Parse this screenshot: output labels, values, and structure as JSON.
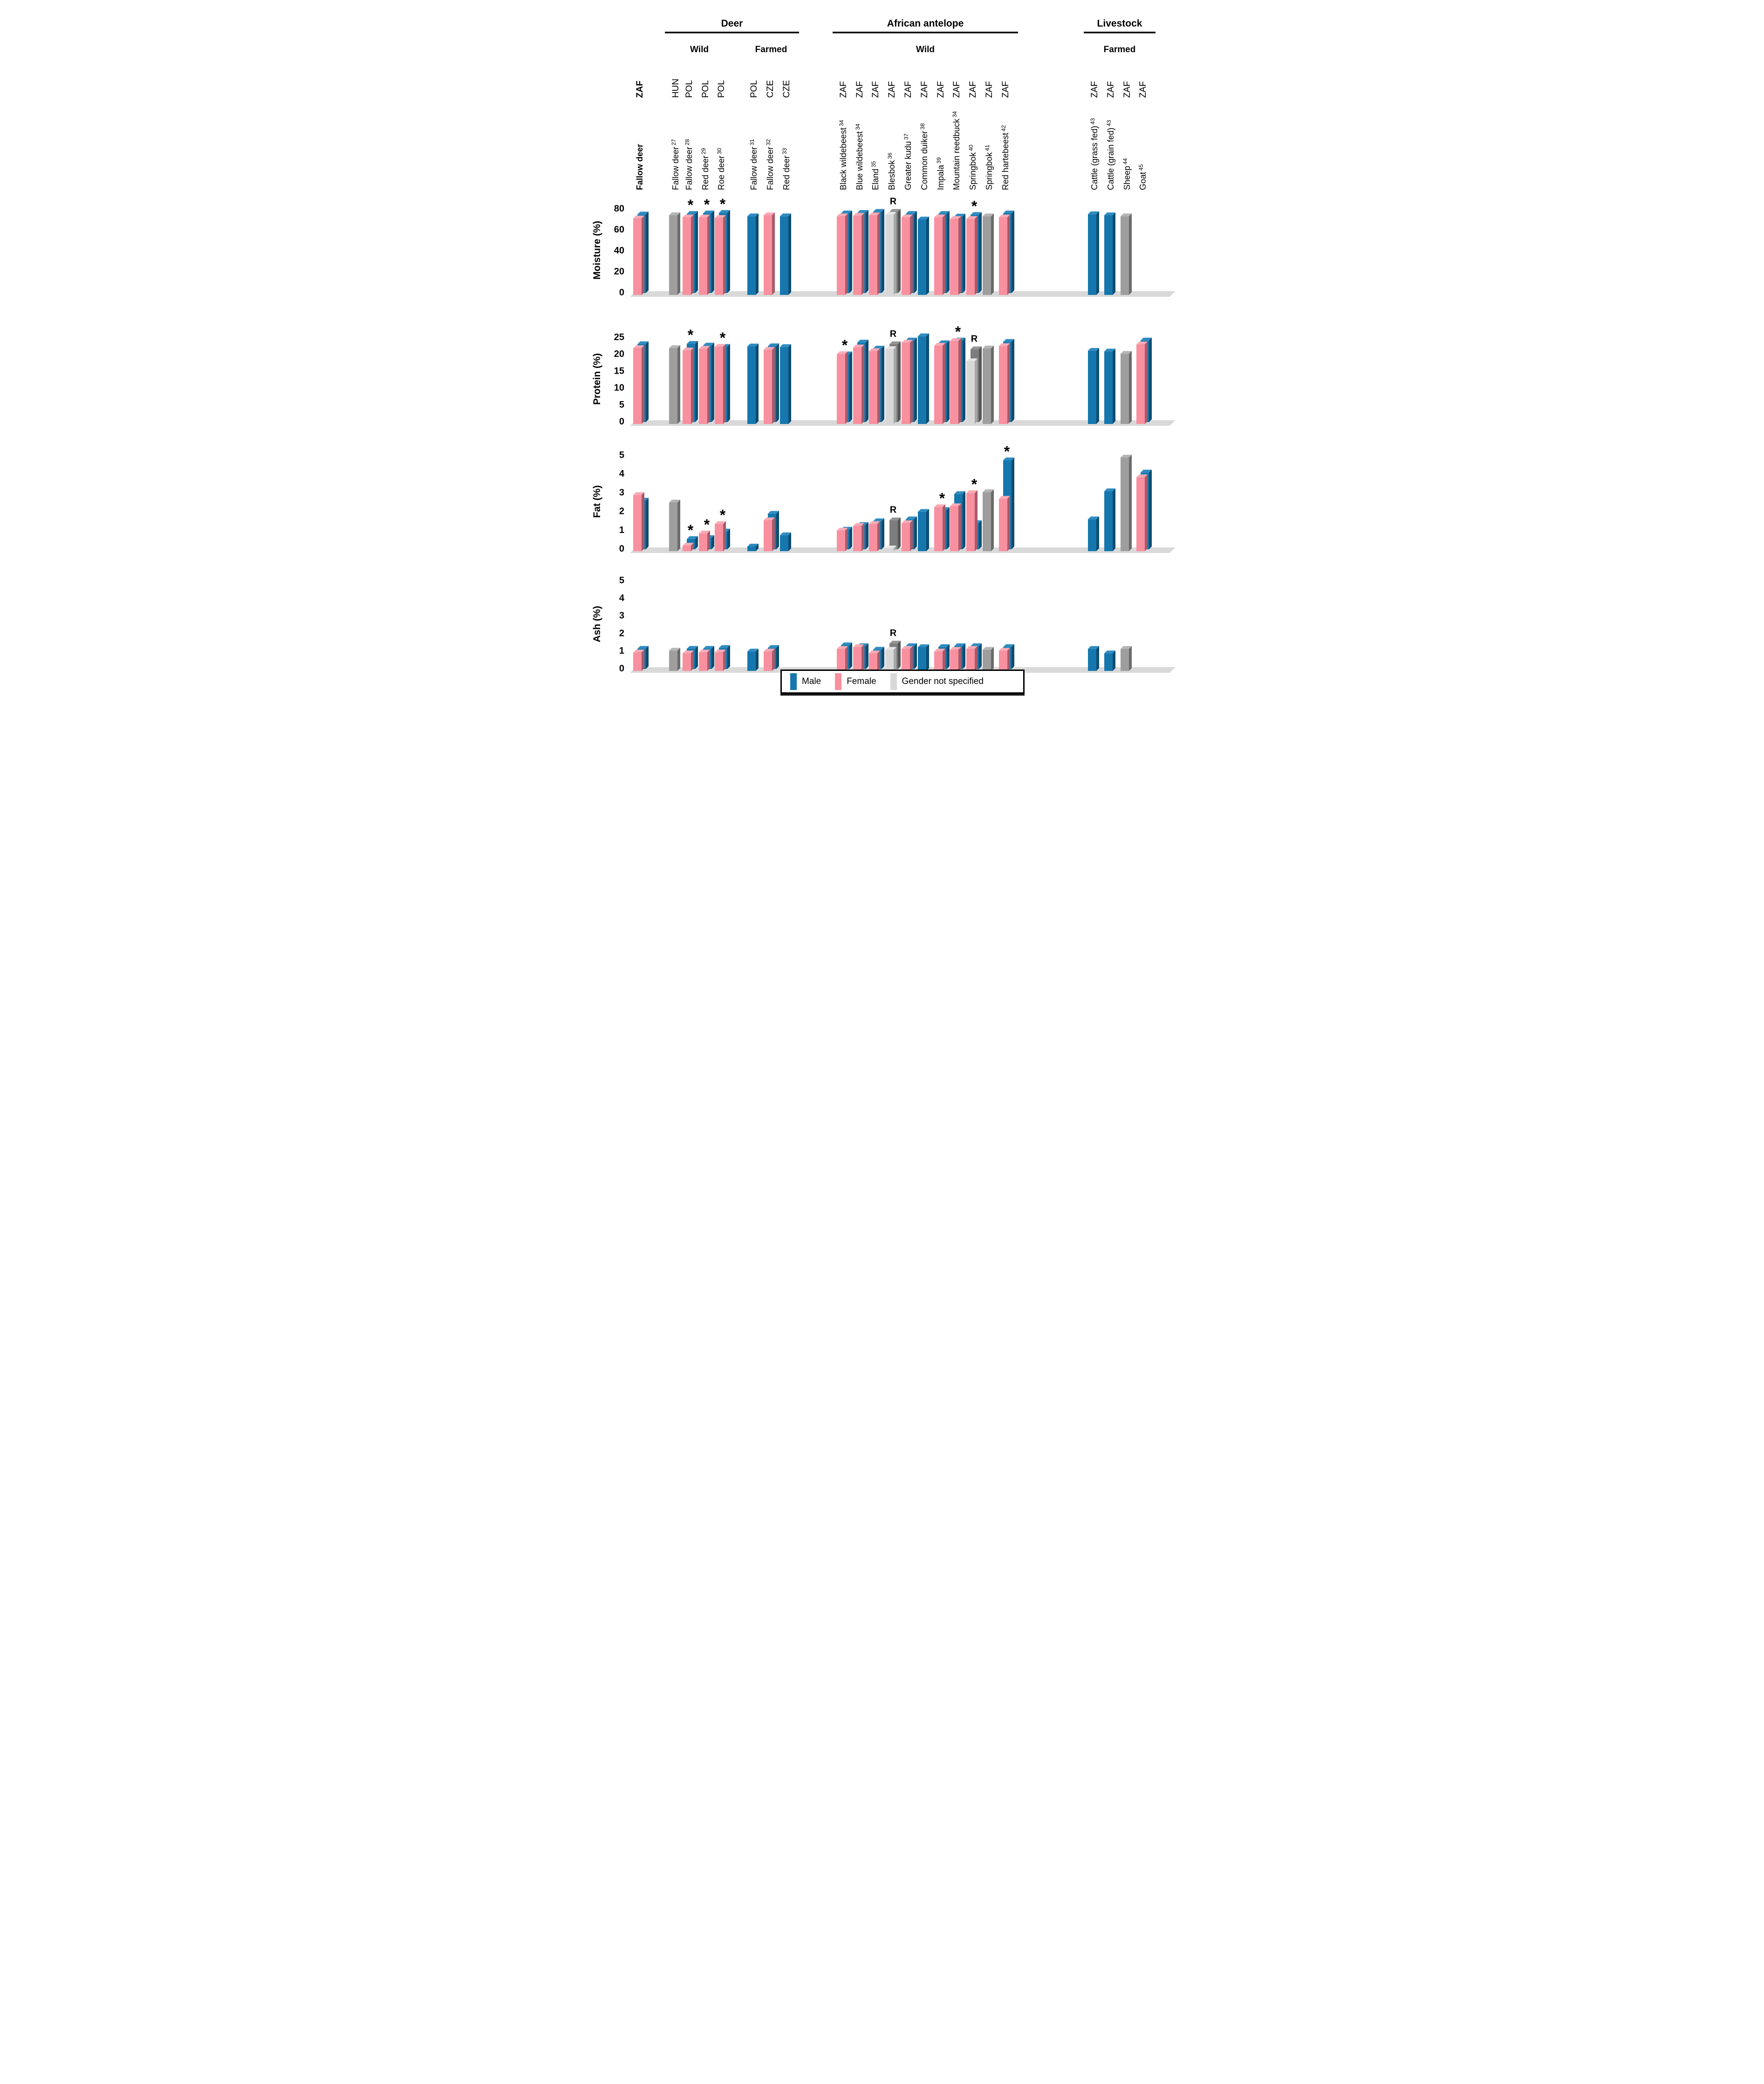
{
  "chart_data": {
    "type": "bar",
    "title": "",
    "legend": {
      "male": "Male",
      "female": "Female",
      "ns": "Gender not specified"
    },
    "colors": {
      "male": {
        "front": "#1577AE",
        "side": "#0D4C70",
        "top": "#2F8CC2"
      },
      "female": {
        "front": "#F9909F",
        "side": "#A85A68",
        "top": "#FBABB6"
      },
      "ns": {
        "front": "#9E9E9E",
        "side": "#6B6B6B",
        "top": "#B5B5B5"
      },
      "ns_light": {
        "front": "#D8D8D8",
        "side": "#A6A6A6",
        "top": "#E6E6E6"
      },
      "ns_dark": {
        "front": "#7D7D7D",
        "side": "#565656",
        "top": "#949494"
      },
      "floor": "#D9D9D9",
      "legend_ns_swatch": "#D9D9D9",
      "text": "#000000"
    },
    "sections": [
      {
        "title": "Deer",
        "cols": [
          1,
          7
        ],
        "subs": [
          {
            "title": "Wild",
            "cols": [
              1,
              4
            ]
          },
          {
            "title": "Farmed",
            "cols": [
              5,
              7
            ]
          }
        ]
      },
      {
        "title": "African antelope",
        "cols": [
          8,
          18
        ],
        "subs": [
          {
            "title": "Wild",
            "cols": [
              8,
              18
            ]
          }
        ]
      },
      {
        "title": "Livestock",
        "cols": [
          19,
          22
        ],
        "subs": [
          {
            "title": "Farmed",
            "cols": [
              19,
              22
            ]
          }
        ]
      }
    ],
    "columns": [
      {
        "species": "Fallow deer",
        "ref": "",
        "country": "ZAF",
        "bold": true
      },
      {
        "species": "Fallow deer",
        "ref": "27",
        "country": "HUN",
        "bold": false
      },
      {
        "species": "Fallow deer",
        "ref": "28",
        "country": "POL",
        "bold": false
      },
      {
        "species": "Red deer",
        "ref": "29",
        "country": "POL",
        "bold": false
      },
      {
        "species": "Roe deer",
        "ref": "30",
        "country": "POL",
        "bold": false
      },
      {
        "species": "Fallow deer",
        "ref": "31",
        "country": "POL",
        "bold": false
      },
      {
        "species": "Fallow deer",
        "ref": "32",
        "country": "CZE",
        "bold": false
      },
      {
        "species": "Red deer",
        "ref": "33",
        "country": "CZE",
        "bold": false
      },
      {
        "species": "Black wildebeest",
        "ref": "34",
        "country": "ZAF",
        "bold": false
      },
      {
        "species": "Blue wildebeest",
        "ref": "34",
        "country": "ZAF",
        "bold": false
      },
      {
        "species": "Eland",
        "ref": "35",
        "country": "ZAF",
        "bold": false
      },
      {
        "species": "Blesbok",
        "ref": "36",
        "country": "ZAF",
        "bold": false
      },
      {
        "species": "Greater kudu",
        "ref": "37",
        "country": "ZAF",
        "bold": false
      },
      {
        "species": "Common duiker",
        "ref": "38",
        "country": "ZAF",
        "bold": false
      },
      {
        "species": "Impala",
        "ref": "39",
        "country": "ZAF",
        "bold": false
      },
      {
        "species": "Mountain reedbuck",
        "ref": "34",
        "country": "ZAF",
        "bold": false
      },
      {
        "species": "Springbok",
        "ref": "40",
        "country": "ZAF",
        "bold": false
      },
      {
        "species": "Springbok",
        "ref": "41",
        "country": "ZAF",
        "bold": false
      },
      {
        "species": "Red hartebeest",
        "ref": "42",
        "country": "ZAF",
        "bold": false
      },
      {
        "species": "Cattle (grass fed)",
        "ref": "43",
        "country": "ZAF",
        "bold": false
      },
      {
        "species": "Cattle (grain fed)",
        "ref": "43",
        "country": "ZAF",
        "bold": false
      },
      {
        "species": "Sheep",
        "ref": "44",
        "country": "ZAF",
        "bold": false
      },
      {
        "species": "Goat",
        "ref": "45",
        "country": "ZAF",
        "bold": false
      }
    ],
    "panels": [
      {
        "label": "Moisture (%)",
        "ymax": 80,
        "ticks": [
          0,
          20,
          40,
          60,
          80
        ],
        "values": [
          {
            "female": 73,
            "male": 75,
            "mark": null
          },
          {
            "ns": 76,
            "mark": null
          },
          {
            "female": 74,
            "male": 75.5,
            "mark": "*"
          },
          {
            "female": 74,
            "male": 76,
            "mark": "*"
          },
          {
            "female": 73.5,
            "male": 76.5,
            "mark": "*"
          },
          {
            "male": 75,
            "mark": null
          },
          {
            "female": 76,
            "mark": null
          },
          {
            "male": 75,
            "mark": null
          },
          {
            "female": 75,
            "male": 76,
            "mark": null
          },
          {
            "female": 75.5,
            "male": 76.5,
            "mark": null
          },
          {
            "female": 76,
            "male": 77.5,
            "mark": null
          },
          {
            "ns_light": 76.5,
            "ns_dark": 77.5,
            "mark": "R"
          },
          {
            "female": 74,
            "male": 75.5,
            "mark": null
          },
          {
            "male": 72,
            "mark": null
          },
          {
            "female": 74,
            "male": 75.5,
            "mark": null
          },
          {
            "female": 72.5,
            "male": 73,
            "mark": null
          },
          {
            "female": 72.5,
            "male": 74.5,
            "mark": "*"
          },
          {
            "ns": 75,
            "mark": null
          },
          {
            "female": 74,
            "male": 76,
            "mark": null
          },
          {
            "male": 77,
            "mark": null
          },
          {
            "male": 76,
            "mark": null
          },
          {
            "ns": 75,
            "mark": null
          },
          null
        ]
      },
      {
        "label": "Protein (%)",
        "ymax": 25,
        "ticks": [
          0,
          5,
          10,
          15,
          20,
          25
        ],
        "values": [
          {
            "female": 22.5,
            "male": 23.1,
            "mark": null
          },
          {
            "ns": 22.5,
            "mark": null
          },
          {
            "female": 21.8,
            "male": 23.2,
            "mark": "*"
          },
          {
            "female": 22.3,
            "male": 22.7,
            "mark": null
          },
          {
            "female": 22.9,
            "male": 22.3,
            "mark": "*"
          },
          {
            "male": 23,
            "mark": null
          },
          {
            "female": 22,
            "male": 22.5,
            "mark": null
          },
          {
            "male": 22.8,
            "mark": null
          },
          {
            "female": 20.7,
            "male": 20.1,
            "mark": "*"
          },
          {
            "female": 22.7,
            "male": 23.6,
            "mark": null
          },
          {
            "female": 21.6,
            "male": 21.8,
            "mark": null
          },
          {
            "ns_light": 22.2,
            "ns_dark": 23.1,
            "mark": "R"
          },
          {
            "female": 24.1,
            "male": 24.2,
            "mark": null
          },
          {
            "male": 26,
            "mark": null
          },
          {
            "female": 23.2,
            "male": 23.4,
            "mark": null
          },
          {
            "female": 24.6,
            "male": 24.2,
            "mark": "*"
          },
          {
            "ns_light": 18.6,
            "ns_dark": 21.6,
            "mark": "R"
          },
          {
            "ns": 22.4,
            "mark": null
          },
          {
            "female": 23.1,
            "male": 23.8,
            "mark": null
          },
          {
            "male": 21.7,
            "mark": null
          },
          {
            "male": 21.5,
            "mark": null
          },
          {
            "ns": 20.8,
            "mark": null
          },
          {
            "female": 23.6,
            "male": 24.2,
            "mark": null
          }
        ]
      },
      {
        "label": "Fat (%)",
        "ymax": 5,
        "ticks": [
          0,
          1,
          2,
          3,
          4,
          5
        ],
        "values": [
          {
            "female": 3.0,
            "male": 2.6,
            "mark": null
          },
          {
            "ns": 2.6,
            "mark": null
          },
          {
            "female": 0.3,
            "male": 0.55,
            "mark": "*"
          },
          {
            "female": 0.95,
            "male": 0.6,
            "mark": "*"
          },
          {
            "female": 1.45,
            "male": 0.95,
            "mark": "*"
          },
          {
            "male": 0.25,
            "mark": null
          },
          {
            "female": 1.65,
            "male": 1.9,
            "mark": null
          },
          {
            "male": 0.85,
            "mark": null
          },
          {
            "female": 1.1,
            "male": 1.05,
            "mark": null
          },
          {
            "female": 1.35,
            "male": 1.3,
            "mark": null
          },
          {
            "female": 1.45,
            "male": 1.5,
            "mark": null
          },
          {
            "ns_light": 0.15,
            "ns_dark": 1.55,
            "mark": "R"
          },
          {
            "female": 1.5,
            "male": 1.6,
            "mark": null
          },
          {
            "male": 2.1,
            "mark": null
          },
          {
            "female": 2.35,
            "male": 2.1,
            "mark": "*"
          },
          {
            "female": 2.4,
            "male": 2.95,
            "mark": null
          },
          {
            "female": 3.1,
            "male": 1.4,
            "mark": "*"
          },
          {
            "ns": 3.15,
            "mark": null
          },
          {
            "female": 2.8,
            "male": 4.75,
            "mark": "*"
          },
          {
            "male": 1.7,
            "mark": null
          },
          {
            "male": 3.2,
            "mark": null
          },
          {
            "ns": 5.0,
            "mark": null
          },
          {
            "female": 3.95,
            "male": 4.1,
            "mark": null
          }
        ]
      },
      {
        "label": "Ash (%)",
        "ymax": 5,
        "ticks": [
          0,
          1,
          2,
          3,
          4,
          5
        ],
        "values": [
          {
            "female": 1.05,
            "male": 1.15,
            "mark": null
          },
          {
            "ns": 1.15,
            "mark": null
          },
          {
            "female": 1.0,
            "male": 1.15,
            "mark": null
          },
          {
            "female": 1.05,
            "male": 1.15,
            "mark": null
          },
          {
            "female": 1.05,
            "male": 1.2,
            "mark": null
          },
          {
            "male": 1.1,
            "mark": null
          },
          {
            "female": 1.1,
            "male": 1.2,
            "mark": null
          },
          null,
          {
            "female": 1.25,
            "male": 1.35,
            "mark": null
          },
          {
            "female": 1.35,
            "male": 1.3,
            "mark": null
          },
          {
            "female": 1.0,
            "male": 1.1,
            "mark": null
          },
          {
            "ns_light": 1.2,
            "ns_dark": 1.45,
            "mark": "R"
          },
          {
            "female": 1.25,
            "male": 1.3,
            "mark": null
          },
          {
            "male": 1.35,
            "mark": null
          },
          {
            "female": 1.1,
            "male": 1.25,
            "mark": null
          },
          {
            "female": 1.2,
            "male": 1.3,
            "mark": null
          },
          {
            "female": 1.25,
            "male": 1.3,
            "mark": null
          },
          {
            "ns": 1.2,
            "mark": null
          },
          {
            "female": 1.15,
            "male": 1.25,
            "mark": null
          },
          {
            "male": 1.25,
            "mark": null
          },
          {
            "male": 1.0,
            "mark": null
          },
          {
            "ns": 1.25,
            "mark": null
          },
          null
        ]
      }
    ]
  }
}
